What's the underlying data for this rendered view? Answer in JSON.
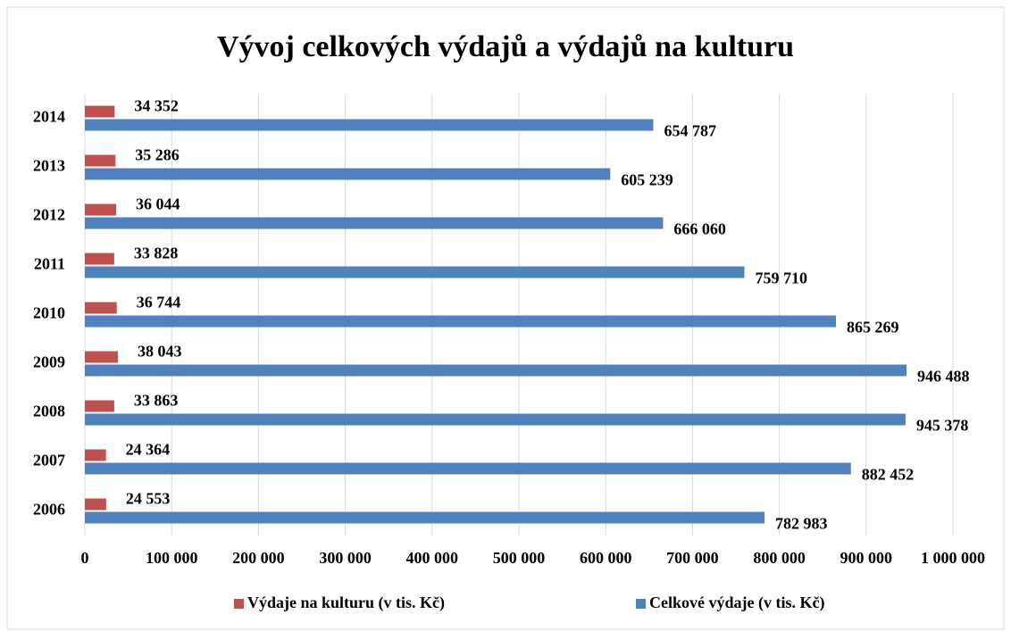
{
  "chart_data": {
    "type": "hbar",
    "title": "Vývoj celkových výdajů a výdajů na kulturu",
    "categories": [
      "2006",
      "2007",
      "2008",
      "2009",
      "2010",
      "2011",
      "2012",
      "2013",
      "2014"
    ],
    "series": [
      {
        "name": "Výdaje na kulturu (v tis. Kč)",
        "color": "#c0504d",
        "values": [
          24553,
          24364,
          33863,
          38043,
          36744,
          33828,
          36044,
          35286,
          34352
        ],
        "value_labels": [
          "24 553",
          "24 364",
          "33 863",
          "38 043",
          "36 744",
          "33 828",
          "36 044",
          "35 286",
          "34 352"
        ]
      },
      {
        "name": "Celkové výdaje (v tis. Kč)",
        "color": "#4f81bd",
        "values": [
          782983,
          882452,
          945378,
          946488,
          865269,
          759710,
          666060,
          605239,
          654787
        ],
        "value_labels": [
          "782 983",
          "882 452",
          "945 378",
          "946 488",
          "865 269",
          "759 710",
          "666 060",
          "605 239",
          "654 787"
        ]
      }
    ],
    "xlim": [
      0,
      1000000
    ],
    "xticks": [
      0,
      {
        "value": 100000,
        "label": "100 000"
      },
      {
        "value": 200000,
        "label": "200 000"
      },
      {
        "value": 300000,
        "label": "300 000"
      },
      {
        "value": 400000,
        "label": "400 000"
      },
      {
        "value": 500000,
        "label": "500 000"
      },
      {
        "value": 600000,
        "label": "600 000"
      },
      {
        "value": 700000,
        "label": "700 000"
      },
      {
        "value": 800000,
        "label": "800 000"
      },
      {
        "value": 900000,
        "label": "900 000"
      },
      {
        "value": 1000000,
        "label": "1 000 000"
      }
    ],
    "grid": true,
    "legend": "bottom"
  }
}
